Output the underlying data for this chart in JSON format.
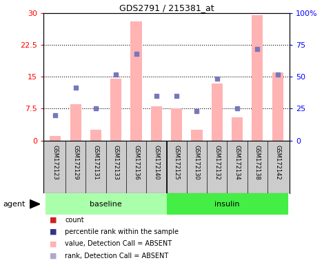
{
  "title": "GDS2791 / 215381_at",
  "samples": [
    "GSM172123",
    "GSM172129",
    "GSM172131",
    "GSM172133",
    "GSM172136",
    "GSM172140",
    "GSM172125",
    "GSM172130",
    "GSM172132",
    "GSM172134",
    "GSM172138",
    "GSM172142"
  ],
  "groups": [
    "baseline",
    "insulin"
  ],
  "baseline_indices": [
    0,
    5
  ],
  "insulin_indices": [
    6,
    11
  ],
  "bar_values": [
    1.0,
    8.5,
    2.5,
    14.5,
    28.0,
    8.0,
    7.5,
    2.5,
    13.5,
    5.5,
    29.5,
    16.0
  ],
  "dot_values": [
    6.0,
    12.5,
    7.5,
    15.5,
    20.5,
    10.5,
    10.5,
    7.0,
    14.5,
    7.5,
    21.5,
    15.5
  ],
  "ylim_left": [
    0,
    30
  ],
  "ylim_right": [
    0,
    100
  ],
  "yticks_left": [
    0,
    7.5,
    15,
    22.5,
    30
  ],
  "yticks_right": [
    0,
    25,
    50,
    75,
    100
  ],
  "yticklabels_left": [
    "0",
    "7.5",
    "15",
    "22.5",
    "30"
  ],
  "yticklabels_right": [
    "0",
    "25",
    "50",
    "75",
    "100%"
  ],
  "bar_color": "#ffb3b3",
  "dot_color": "#7777bb",
  "group_color_baseline": "#aaffaa",
  "group_color_insulin": "#44ee44",
  "dotted_line_color": "black",
  "axis_bg": "#cccccc",
  "legend_items": [
    {
      "label": "count",
      "color": "#cc2222"
    },
    {
      "label": "percentile rank within the sample",
      "color": "#333388"
    },
    {
      "label": "value, Detection Call = ABSENT",
      "color": "#ffb3b3"
    },
    {
      "label": "rank, Detection Call = ABSENT",
      "color": "#aaaacc"
    }
  ]
}
